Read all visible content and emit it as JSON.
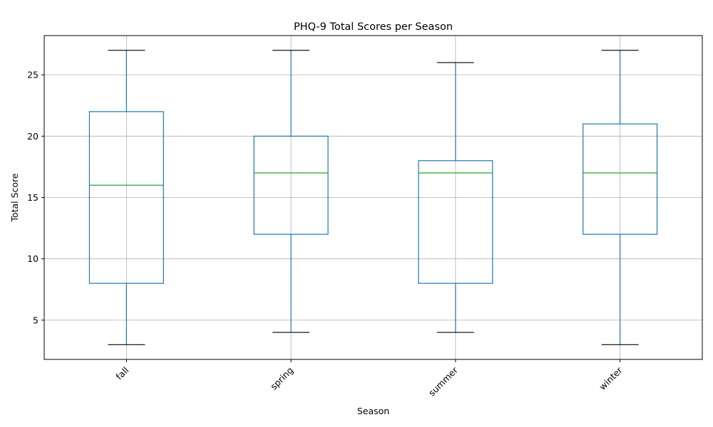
{
  "chart_data": {
    "type": "boxplot",
    "title": "PHQ-9 Total Scores per Season",
    "xlabel": "Season",
    "ylabel": "Total Score",
    "categories": [
      "fall",
      "spring",
      "summer",
      "winter"
    ],
    "boxes": [
      {
        "category": "fall",
        "whisker_low": 3,
        "q1": 8,
        "median": 16,
        "q3": 22,
        "whisker_high": 27
      },
      {
        "category": "spring",
        "whisker_low": 4,
        "q1": 12,
        "median": 17,
        "q3": 20,
        "whisker_high": 27
      },
      {
        "category": "summer",
        "whisker_low": 4,
        "q1": 8,
        "median": 17,
        "q3": 18,
        "whisker_high": 26
      },
      {
        "category": "winter",
        "whisker_low": 3,
        "q1": 12,
        "median": 17,
        "q3": 21,
        "whisker_high": 27
      }
    ],
    "ylim": [
      1.8,
      28.2
    ],
    "yticks": [
      5,
      10,
      15,
      20,
      25
    ],
    "grid": true,
    "xtick_rotation_deg": 45,
    "colors": {
      "box": "#1f77b4",
      "whisker": "#1f77b4",
      "cap": "#000000",
      "median": "#2ca02c",
      "grid": "#b0b0b0",
      "axes": "#000000"
    }
  }
}
